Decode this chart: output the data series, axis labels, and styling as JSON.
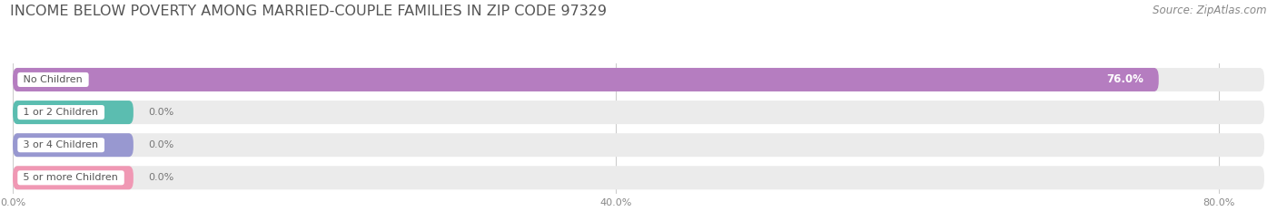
{
  "title": "INCOME BELOW POVERTY AMONG MARRIED-COUPLE FAMILIES IN ZIP CODE 97329",
  "source": "Source: ZipAtlas.com",
  "categories": [
    "No Children",
    "1 or 2 Children",
    "3 or 4 Children",
    "5 or more Children"
  ],
  "values": [
    76.0,
    0.0,
    0.0,
    0.0
  ],
  "bar_colors": [
    "#b57dc0",
    "#5bbdb0",
    "#9898d0",
    "#f098b4"
  ],
  "label_bg_colors": [
    "#b57dc0",
    "#5bbdb0",
    "#9898d0",
    "#f098b4"
  ],
  "bar_bg_color": "#ebebeb",
  "zero_bar_width": 8.0,
  "value_labels": [
    "76.0%",
    "0.0%",
    "0.0%",
    "0.0%"
  ],
  "xlim": [
    0,
    83
  ],
  "xticks": [
    0.0,
    40.0,
    80.0
  ],
  "xtick_labels": [
    "0.0%",
    "40.0%",
    "80.0%"
  ],
  "background_color": "#ffffff",
  "title_fontsize": 11.5,
  "source_fontsize": 8.5,
  "bar_height": 0.72,
  "grid_color": "#cccccc",
  "label_text_color": "#555555"
}
